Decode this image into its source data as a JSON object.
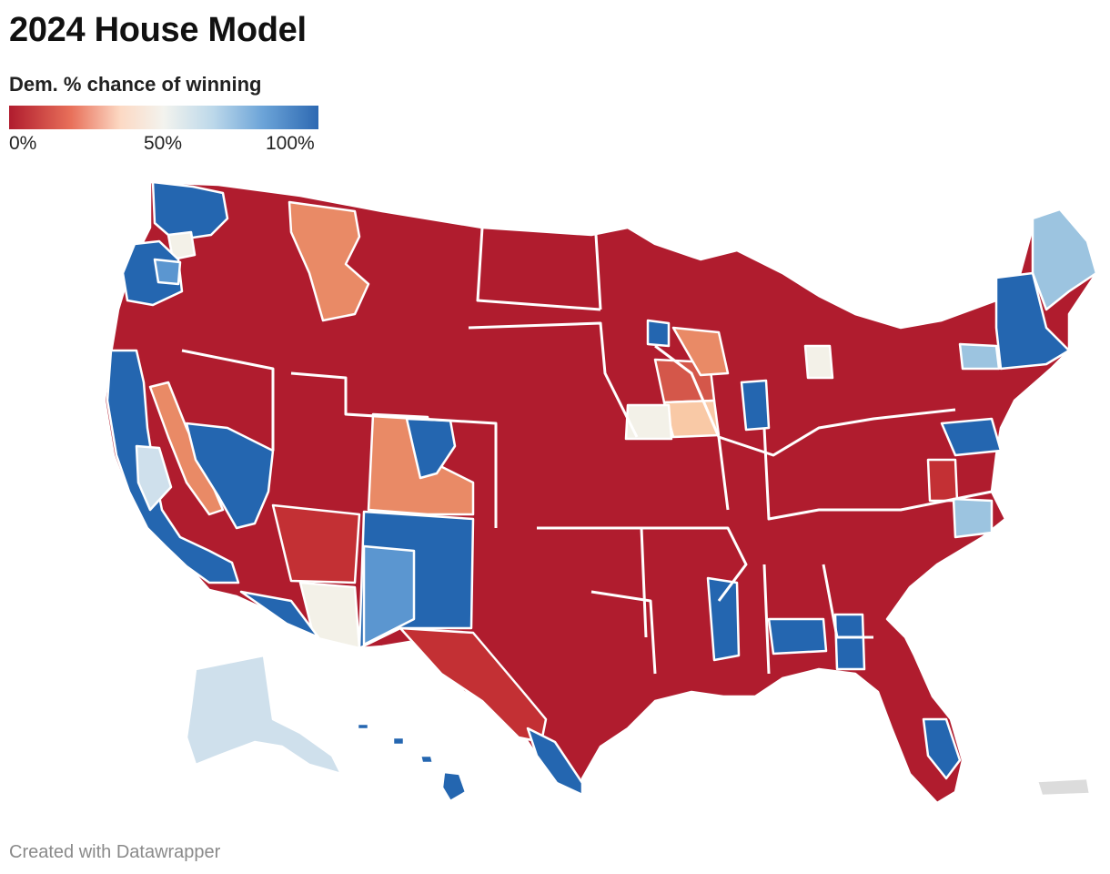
{
  "header": {
    "title": "2024 House Model"
  },
  "legend": {
    "title": "Dem. % chance of winning",
    "ticks": [
      "0%",
      "50%",
      "100%"
    ],
    "gradient_colors": [
      "#b01c2e",
      "#e8705a",
      "#fcd9c4",
      "#f3f3ee",
      "#bcd8ea",
      "#6ca4d8",
      "#2d69b2"
    ],
    "scale_min": 0,
    "scale_max": 100
  },
  "map": {
    "colors": {
      "safe_rep": "#b01c2e",
      "likely_rep": "#c33034",
      "lean_rep": "#e98a66",
      "tilt_rep": "#f9c9a6",
      "tossup": "#f3f1e8",
      "tilt_dem": "#cfe0ec",
      "lean_dem": "#9cc4e0",
      "likely_dem": "#5b96d0",
      "safe_dem": "#2466b0",
      "no_data": "#dcdcdc",
      "border": "#ffffff"
    }
  },
  "footer": {
    "credit": "Created with Datawrapper"
  }
}
